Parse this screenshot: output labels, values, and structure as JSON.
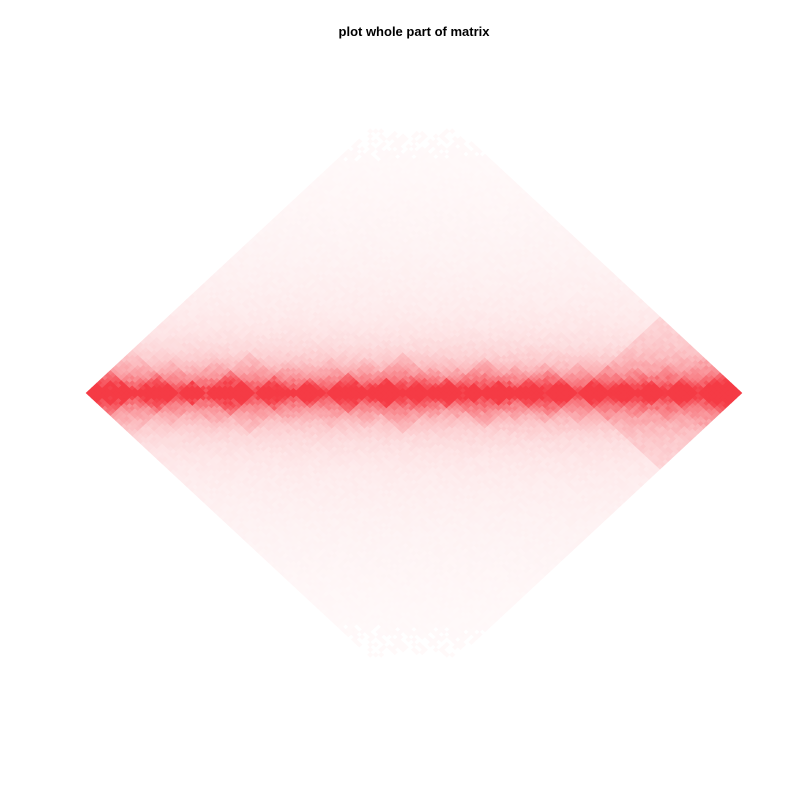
{
  "chart_data": {
    "type": "heatmap",
    "title": "plot whole part of matrix",
    "subtype": "rotated-symmetric-contact-matrix",
    "orientation": "diagonal-horizontal, mirrored top and bottom",
    "color_scale": {
      "low": "#ffffff",
      "high": "#f53b45"
    },
    "matrix": {
      "bins": 120,
      "diagonal_intensity": 1.0,
      "distance_decay": 0.045,
      "domain_boundaries": [
        0,
        9,
        17,
        22,
        31,
        38,
        44,
        52,
        58,
        63,
        69,
        73,
        78,
        84,
        90,
        96,
        101,
        106,
        112,
        120
      ],
      "within_domain_boost": 0.35,
      "dense_block_ranges": [
        [
          50,
          66
        ],
        [
          66,
          80
        ],
        [
          80,
          90
        ],
        [
          90,
          120
        ]
      ],
      "noise_level": 0.12
    },
    "grid": false,
    "legend": "none",
    "axes_visible": false
  }
}
